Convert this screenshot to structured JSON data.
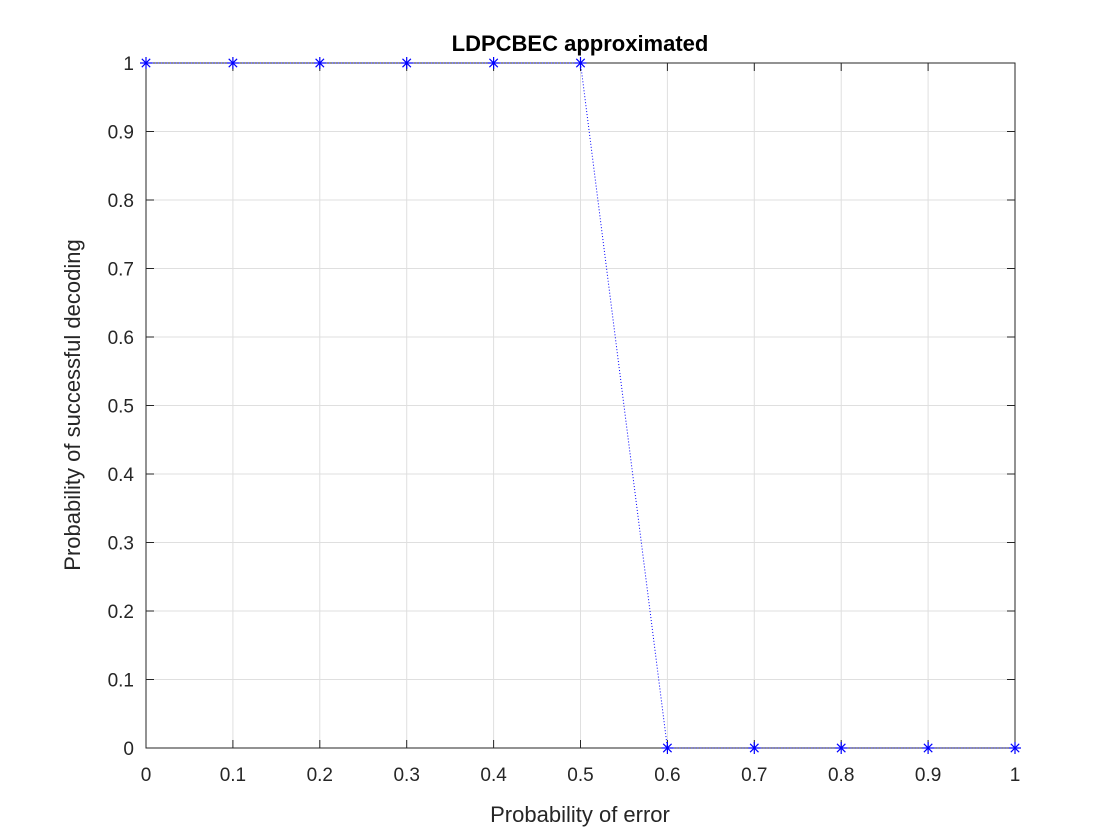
{
  "chart_data": {
    "type": "line",
    "title": "LDPCBEC approximated",
    "xlabel": "Probability of error",
    "ylabel": "Probability of successful decoding",
    "xlim": [
      0,
      1
    ],
    "ylim": [
      0,
      1
    ],
    "xticks": [
      0,
      0.1,
      0.2,
      0.3,
      0.4,
      0.5,
      0.6,
      0.7,
      0.8,
      0.9,
      1
    ],
    "yticks": [
      0,
      0.1,
      0.2,
      0.3,
      0.4,
      0.5,
      0.6,
      0.7,
      0.8,
      0.9,
      1
    ],
    "xtick_labels": [
      "0",
      "0.1",
      "0.2",
      "0.3",
      "0.4",
      "0.5",
      "0.6",
      "0.7",
      "0.8",
      "0.9",
      "1"
    ],
    "ytick_labels": [
      "0",
      "0.1",
      "0.2",
      "0.3",
      "0.4",
      "0.5",
      "0.6",
      "0.7",
      "0.8",
      "0.9",
      "1"
    ],
    "grid": true,
    "series": [
      {
        "x": [
          0,
          0.1,
          0.2,
          0.3,
          0.4,
          0.5,
          0.6,
          0.7,
          0.8,
          0.9,
          1
        ],
        "y": [
          1,
          1,
          1,
          1,
          1,
          1,
          0,
          0,
          0,
          0,
          0
        ],
        "color": "#0000ff",
        "line_style": "dotted",
        "marker": "asterisk"
      }
    ]
  }
}
